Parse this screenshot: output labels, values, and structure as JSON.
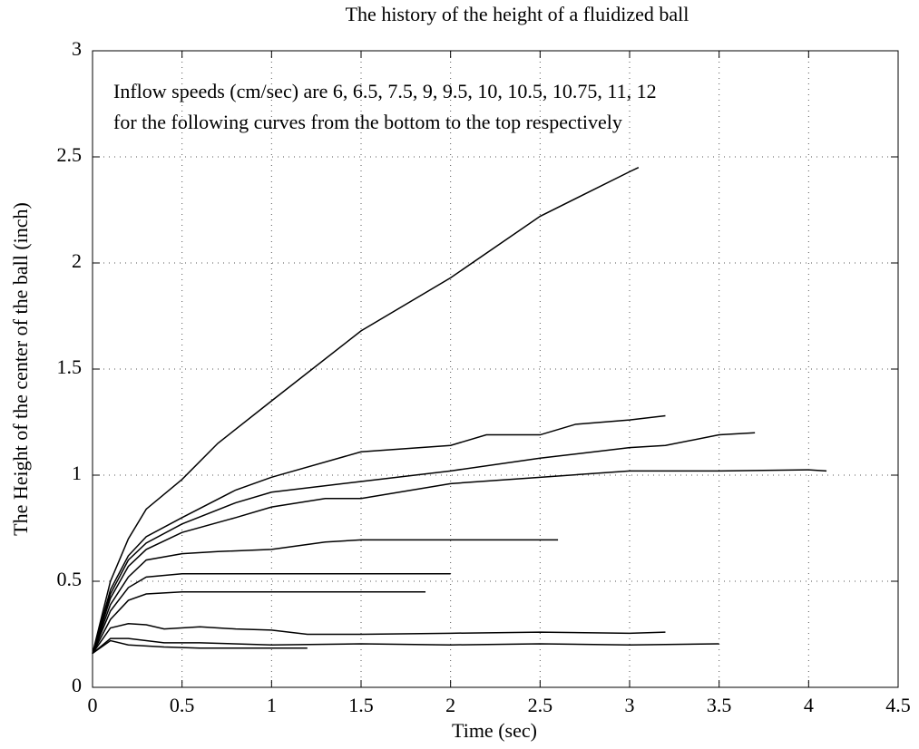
{
  "chart_data": {
    "type": "line",
    "title": "The history of the height of a fluidized ball",
    "xlabel": "Time (sec)",
    "ylabel": "The Height of the center of the ball (inch)",
    "annotations": [
      "Inflow speeds (cm/sec) are 6, 6.5, 7.5, 9, 9.5, 10, 10.5, 10.75, 11, 12",
      "for the following curves from the bottom to the top respectively"
    ],
    "xlim": [
      0,
      4.5
    ],
    "ylim": [
      0,
      3
    ],
    "xticks": [
      0,
      0.5,
      1,
      1.5,
      2,
      2.5,
      3,
      3.5,
      4,
      4.5
    ],
    "yticks": [
      0,
      0.5,
      1,
      1.5,
      2,
      2.5,
      3
    ],
    "grid": true,
    "series": [
      {
        "color": "#000000",
        "x": [
          0,
          0.1,
          0.2,
          0.4,
          0.6,
          0.8,
          1.0,
          1.2
        ],
        "values": [
          0.16,
          0.22,
          0.2,
          0.19,
          0.185,
          0.185,
          0.185,
          0.185
        ]
      },
      {
        "color": "#000000",
        "x": [
          0,
          0.1,
          0.2,
          0.4,
          0.6,
          1,
          1.5,
          2,
          2.5,
          3,
          3.5
        ],
        "values": [
          0.16,
          0.23,
          0.23,
          0.21,
          0.21,
          0.2,
          0.205,
          0.2,
          0.205,
          0.2,
          0.205
        ]
      },
      {
        "color": "#000000",
        "x": [
          0,
          0.1,
          0.2,
          0.3,
          0.4,
          0.6,
          0.8,
          1,
          1.2,
          1.5,
          2,
          2.5,
          3,
          3.2
        ],
        "values": [
          0.16,
          0.28,
          0.3,
          0.295,
          0.275,
          0.285,
          0.275,
          0.27,
          0.25,
          0.25,
          0.255,
          0.26,
          0.255,
          0.26
        ]
      },
      {
        "color": "#000000",
        "x": [
          0,
          0.1,
          0.2,
          0.3,
          0.5,
          1,
          1.5,
          1.86
        ],
        "values": [
          0.16,
          0.32,
          0.41,
          0.44,
          0.45,
          0.45,
          0.45,
          0.45
        ]
      },
      {
        "color": "#000000",
        "x": [
          0,
          0.1,
          0.2,
          0.3,
          0.5,
          1,
          1.5,
          2
        ],
        "values": [
          0.16,
          0.36,
          0.47,
          0.52,
          0.535,
          0.535,
          0.535,
          0.535
        ]
      },
      {
        "color": "#000000",
        "x": [
          0,
          0.1,
          0.2,
          0.3,
          0.5,
          0.7,
          1,
          1.3,
          1.5,
          2,
          2.6
        ],
        "values": [
          0.16,
          0.39,
          0.52,
          0.6,
          0.63,
          0.64,
          0.65,
          0.685,
          0.695,
          0.695,
          0.695
        ]
      },
      {
        "color": "#000000",
        "x": [
          0,
          0.1,
          0.2,
          0.3,
          0.5,
          0.8,
          1,
          1.3,
          1.5,
          2,
          2.5,
          3,
          3.5,
          4,
          4.1
        ],
        "values": [
          0.16,
          0.42,
          0.57,
          0.65,
          0.73,
          0.8,
          0.85,
          0.89,
          0.89,
          0.96,
          0.99,
          1.02,
          1.02,
          1.025,
          1.02
        ]
      },
      {
        "color": "#000000",
        "x": [
          0,
          0.1,
          0.2,
          0.3,
          0.5,
          0.8,
          1,
          1.5,
          2,
          2.5,
          3,
          3.2,
          3.5,
          3.7
        ],
        "values": [
          0.16,
          0.44,
          0.6,
          0.68,
          0.77,
          0.87,
          0.92,
          0.97,
          1.02,
          1.08,
          1.13,
          1.14,
          1.19,
          1.2
        ]
      },
      {
        "color": "#000000",
        "x": [
          0,
          0.1,
          0.2,
          0.3,
          0.5,
          0.8,
          1,
          1.5,
          2,
          2.2,
          2.5,
          2.7,
          3,
          3.2
        ],
        "values": [
          0.16,
          0.46,
          0.62,
          0.71,
          0.8,
          0.93,
          0.99,
          1.11,
          1.14,
          1.19,
          1.19,
          1.24,
          1.26,
          1.28
        ]
      },
      {
        "color": "#000000",
        "x": [
          0,
          0.1,
          0.2,
          0.3,
          0.5,
          0.7,
          1,
          1.5,
          2,
          2.5,
          3,
          3.05
        ],
        "values": [
          0.16,
          0.5,
          0.7,
          0.84,
          0.98,
          1.15,
          1.35,
          1.68,
          1.93,
          2.22,
          2.43,
          2.45
        ]
      }
    ]
  }
}
